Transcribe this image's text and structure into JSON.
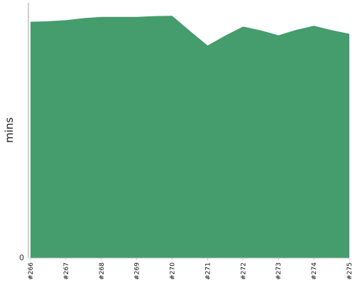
{
  "chart_data": {
    "type": "area",
    "title": "",
    "xlabel": "",
    "ylabel": "mins",
    "categories": [
      "#266",
      "#267",
      "#268",
      "#269",
      "#270",
      "#271",
      "#272",
      "#273",
      "#274",
      "#275"
    ],
    "x": [
      266,
      266.5,
      267,
      267.5,
      268,
      268.5,
      269,
      269.5,
      270,
      270.5,
      271,
      271.5,
      272,
      272.5,
      273,
      273.5,
      274,
      274.5,
      275
    ],
    "series": [
      {
        "values": [
          92.6,
          92.8,
          93.2,
          94.0,
          94.5,
          94.5,
          94.5,
          94.8,
          94.9,
          89.0,
          83.3,
          87.2,
          90.7,
          89.2,
          87.3,
          89.4,
          91.0,
          89.3,
          87.9
        ]
      }
    ],
    "ylim": [
      0,
      100
    ],
    "yticks": [
      0
    ],
    "grid": false,
    "colors": {
      "area": "#459c6d",
      "axis": "#a0a0a0"
    }
  }
}
